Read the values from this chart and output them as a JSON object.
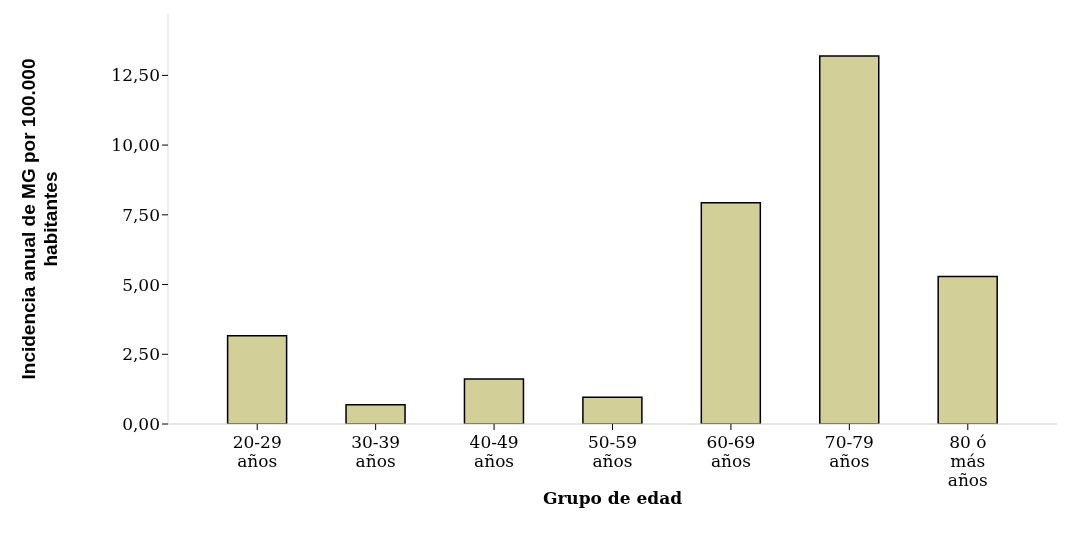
{
  "chart_data": {
    "type": "bar",
    "xlabel": "Grupo de edad",
    "ylabel": "Incidencia anual de MG por 100.000 habitantes",
    "categories": [
      "20-29 años",
      "30-39 años",
      "40-49 años",
      "50-59 años",
      "60-69 años",
      "70-79 años",
      "80 ó más años"
    ],
    "values": [
      3.16,
      0.69,
      1.61,
      0.96,
      7.93,
      13.19,
      5.29
    ],
    "color": "#d3cf98",
    "ylim": [
      0,
      14.7
    ],
    "yticks": [
      {
        "value": 0,
        "label": "0,00"
      },
      {
        "value": 2.5,
        "label": "2,50"
      },
      {
        "value": 5,
        "label": "5,00"
      },
      {
        "value": 7.5,
        "label": "7,50"
      },
      {
        "value": 10,
        "label": "10,00"
      },
      {
        "value": 12.5,
        "label": "12,50"
      }
    ],
    "grid": false,
    "legend": false
  }
}
